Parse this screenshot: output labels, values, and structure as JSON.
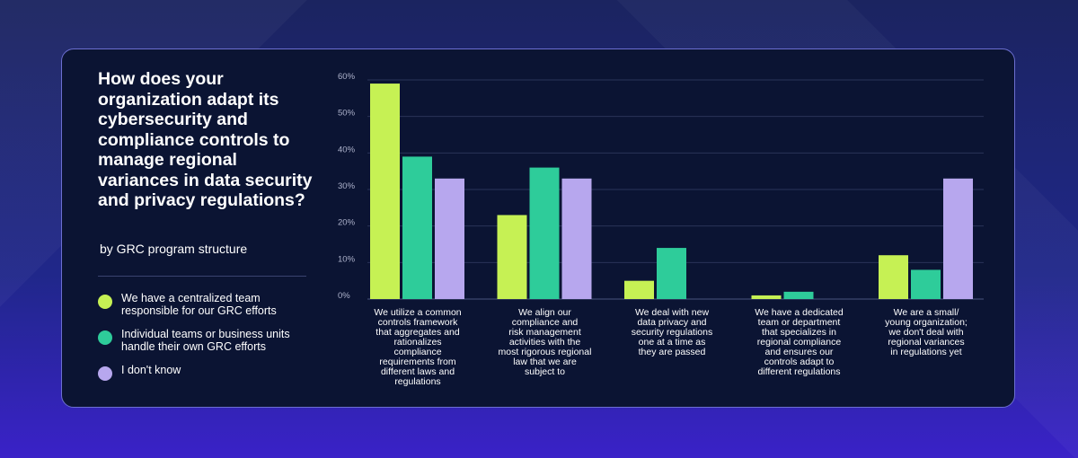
{
  "colors": {
    "series_1": "#c6f154",
    "series_2": "#2ecc9a",
    "series_3": "#b7a7ee"
  },
  "chart_data": {
    "type": "bar",
    "title": "How does your organization adapt its cybersecurity and compliance controls to manage regional variances in data security and privacy regulations?",
    "subtitle": "by GRC program structure",
    "ylim": [
      0,
      60
    ],
    "yticks": [
      "0%",
      "10%",
      "20%",
      "30%",
      "40%",
      "50%",
      "60%"
    ],
    "grid": true,
    "legend_position": "left",
    "categories": [
      "We utilize a common controls framework that aggregates and rationalizes compliance requirements from different laws and regulations",
      "We align our compliance and risk management activities with the most rigorous regional law that we are subject to",
      "We deal with new data privacy and security regulations one at a time as they are passed",
      "We have a dedicated team or department that specializes in regional compliance and ensures our controls adapt to different regulations",
      "We are a small/ young organization; we don't deal with regional variances in regulations yet"
    ],
    "category_lines": [
      [
        "We utilize a common",
        "controls framework",
        "that aggregates and",
        "rationalizes",
        "compliance",
        "requirements from",
        "different laws and",
        "regulations"
      ],
      [
        "We align our",
        "compliance and",
        "risk management",
        "activities with the",
        "most rigorous regional",
        "law that we are",
        "subject to"
      ],
      [
        "We deal with new",
        "data privacy and",
        "security regulations",
        "one at a time as",
        "they are passed"
      ],
      [
        "We have a dedicated",
        "team or department",
        "that specializes in",
        "regional compliance",
        "and ensures our",
        "controls adapt to",
        "different regulations"
      ],
      [
        "We are a small/",
        "young organization;",
        "we don't deal with",
        "regional variances",
        "in regulations yet"
      ]
    ],
    "series": [
      {
        "name": "We have a centralized team responsible for our GRC efforts",
        "values": [
          59,
          23,
          5,
          1,
          12
        ]
      },
      {
        "name": "Individual teams or business units handle their own GRC efforts",
        "values": [
          39,
          36,
          14,
          2,
          8
        ]
      },
      {
        "name": "I don't know",
        "values": [
          33,
          33,
          0,
          0,
          33
        ]
      }
    ]
  }
}
